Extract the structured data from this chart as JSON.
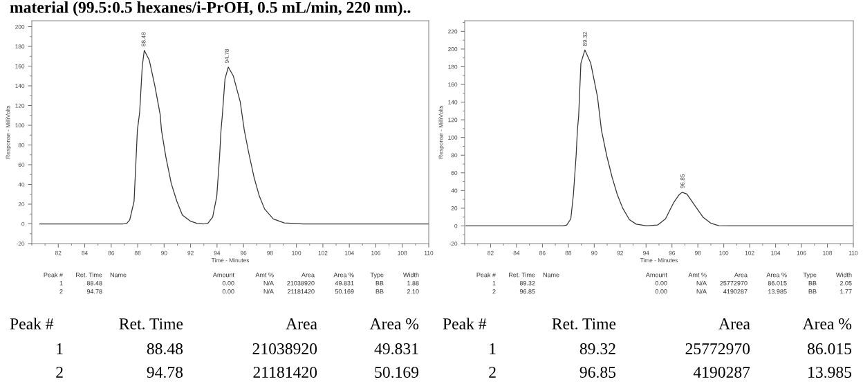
{
  "chart_data": [
    {
      "type": "line",
      "title": "material (99.5:0.5 hexanes/i-PrOH, 0.5 mL/min, 220 nm)..",
      "xlabel": "Time - Minutes",
      "ylabel": "Response - MilliVolts",
      "xlim": [
        80,
        110
      ],
      "xticks": [
        82,
        84,
        86,
        88,
        90,
        92,
        94,
        96,
        98,
        100,
        102,
        104,
        106,
        108,
        110
      ],
      "ylim": [
        -20,
        206
      ],
      "yticks": [
        -20,
        0,
        20,
        40,
        60,
        80,
        100,
        120,
        140,
        160,
        180,
        200
      ],
      "grid": false,
      "series": [
        {
          "color": "#333333",
          "x": [
            80.6,
            86.9,
            87.17,
            87.4,
            87.73,
            87.98,
            88.15,
            88.35,
            88.5,
            88.88,
            89.3,
            89.7,
            89.8,
            90.13,
            90.54,
            90.96,
            91.38,
            92.0,
            92.5,
            93.0,
            93.3,
            93.67,
            93.98,
            94.19,
            94.3,
            94.4,
            94.6,
            94.85,
            95.23,
            95.75,
            96.06,
            96.38,
            96.8,
            97.2,
            97.6,
            98.25,
            99.08,
            100.5,
            110
          ],
          "values": [
            0,
            0,
            0.5,
            4,
            23,
            95,
            113,
            160,
            176,
            166,
            140,
            111,
            95,
            68,
            41,
            23,
            9,
            2.7,
            0.5,
            0,
            0.5,
            7,
            28,
            68,
            95,
            110,
            147,
            159,
            150,
            124,
            95,
            73,
            47,
            28,
            15,
            5,
            1,
            0,
            0
          ]
        }
      ],
      "annotations": [
        {
          "text": "88.48",
          "x": 88.48,
          "y": 176
        },
        {
          "text": "94.78",
          "x": 94.78,
          "y": 159
        },
        "Peak #",
        "Ret. Time",
        "Name",
        "Amount",
        "Amt %",
        "Area",
        "Area %",
        "Type",
        "Width",
        "1",
        "88.48",
        "0.00",
        "N/A",
        "21038920",
        "49.831",
        "BB",
        "1.88",
        "2",
        "94.78",
        "0.00",
        "N/A",
        "21181420",
        "50.169",
        "BB",
        "2.10",
        "Peak #",
        "Ret. Time",
        "Area",
        "Area %",
        "1",
        "88.48",
        "21038920",
        "49.831",
        "2",
        "94.78",
        "21181420",
        "50.169"
      ]
    },
    {
      "type": "line",
      "xlabel": "Time - Minutes",
      "ylabel": "Response - MilliVolts",
      "xlim": [
        80,
        110
      ],
      "xticks": [
        82,
        84,
        86,
        88,
        90,
        92,
        94,
        96,
        98,
        100,
        102,
        104,
        106,
        108,
        110
      ],
      "ylim": [
        -20,
        232
      ],
      "yticks": [
        -20,
        0,
        20,
        40,
        60,
        80,
        100,
        120,
        140,
        160,
        180,
        200,
        220
      ],
      "grid": false,
      "series": [
        {
          "color": "#333333",
          "x": [
            80.1,
            87.6,
            87.88,
            88.19,
            88.39,
            88.6,
            88.7,
            88.8,
            88.97,
            89.28,
            89.73,
            90.25,
            90.56,
            90.97,
            91.38,
            91.79,
            92.2,
            92.72,
            93.24,
            94.06,
            94.89,
            95.5,
            96.12,
            96.54,
            96.78,
            97.15,
            97.77,
            98.39,
            99.0,
            99.63,
            100.5,
            110
          ],
          "values": [
            0,
            0,
            1,
            8,
            35,
            79,
            108,
            125,
            184,
            199,
            184,
            146,
            108,
            79,
            55,
            35,
            20,
            7,
            2,
            0,
            1,
            8,
            26,
            35,
            38,
            36,
            23,
            10,
            3,
            0.3,
            0,
            0
          ]
        }
      ],
      "annotations": [
        {
          "text": "89.32",
          "x": 89.32,
          "y": 199
        },
        {
          "text": "96.85",
          "x": 96.85,
          "y": 38
        },
        "Peak #",
        "Ret. Time",
        "Name",
        "Amount",
        "Amt %",
        "Area",
        "Area %",
        "Type",
        "Width",
        "1",
        "89.32",
        "0.00",
        "N/A",
        "25772970",
        "86.015",
        "BB",
        "2.05",
        "2",
        "96.85",
        "0.00",
        "N/A",
        "4190287",
        "13.985",
        "BB",
        "1.77",
        "Peak #",
        "Ret. Time",
        "Area",
        "Area %",
        "1",
        "89.32",
        "25772970",
        "86.015",
        "2",
        "96.85",
        "4190287",
        "13.985"
      ]
    }
  ]
}
